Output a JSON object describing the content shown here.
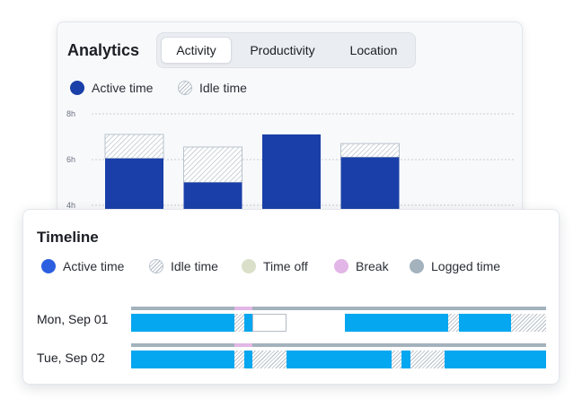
{
  "analytics": {
    "title": "Analytics",
    "tabs": [
      {
        "label": "Activity",
        "active": true
      },
      {
        "label": "Productivity",
        "active": false
      },
      {
        "label": "Location",
        "active": false
      }
    ],
    "legend": [
      {
        "label": "Active time",
        "color": "#1a3fa8"
      },
      {
        "label": "Idle time",
        "pattern": "hatched"
      }
    ]
  },
  "chart_data": {
    "type": "bar",
    "stacked": true,
    "y_unit": "h",
    "ytick_labels": [
      "8h",
      "6h",
      "4h"
    ],
    "yticks": [
      8,
      6,
      4
    ],
    "ylim": [
      0,
      8
    ],
    "grid": true,
    "categories": [
      "",
      "",
      "",
      ""
    ],
    "series": [
      {
        "name": "Active time",
        "color": "#1a3fa8",
        "values": [
          6.05,
          5.0,
          7.1,
          6.1
        ]
      },
      {
        "name": "Idle time",
        "pattern": "hatched",
        "values": [
          1.05,
          1.55,
          0,
          0.6
        ]
      }
    ]
  },
  "timeline": {
    "title": "Timeline",
    "legend": [
      {
        "label": "Active time",
        "color": "#2b5fe0"
      },
      {
        "label": "Idle time",
        "pattern": "hatched"
      },
      {
        "label": "Time off",
        "color": "#d9dfc8"
      },
      {
        "label": "Break",
        "color": "#e2b6e6"
      },
      {
        "label": "Logged time",
        "color": "#a3b2bd"
      }
    ],
    "rows": [
      {
        "label": "Mon, Sep 01",
        "break_fraction": [
          0.248,
          0.293
        ],
        "segments": [
          {
            "type": "active",
            "start": 0.0,
            "end": 0.248
          },
          {
            "type": "idle",
            "start": 0.248,
            "end": 0.272
          },
          {
            "type": "active",
            "start": 0.272,
            "end": 0.293
          },
          {
            "type": "empty",
            "start": 0.293,
            "end": 0.375
          },
          {
            "type": "active",
            "start": 0.515,
            "end": 0.765
          },
          {
            "type": "idle",
            "start": 0.765,
            "end": 0.79
          },
          {
            "type": "active",
            "start": 0.79,
            "end": 0.915
          },
          {
            "type": "idle",
            "start": 0.915,
            "end": 1.0
          }
        ]
      },
      {
        "label": "Tue, Sep 02",
        "break_fraction": [
          0.248,
          0.293
        ],
        "segments": [
          {
            "type": "active",
            "start": 0.0,
            "end": 0.248
          },
          {
            "type": "idle",
            "start": 0.248,
            "end": 0.272
          },
          {
            "type": "active",
            "start": 0.272,
            "end": 0.293
          },
          {
            "type": "idle",
            "start": 0.293,
            "end": 0.375
          },
          {
            "type": "active",
            "start": 0.375,
            "end": 0.627
          },
          {
            "type": "idle",
            "start": 0.627,
            "end": 0.652
          },
          {
            "type": "active",
            "start": 0.652,
            "end": 0.673
          },
          {
            "type": "idle",
            "start": 0.673,
            "end": 0.755
          },
          {
            "type": "active",
            "start": 0.755,
            "end": 1.0
          }
        ]
      }
    ]
  }
}
